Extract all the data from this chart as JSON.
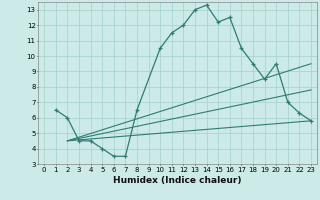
{
  "xlabel": "Humidex (Indice chaleur)",
  "bg_color": "#cceae8",
  "line_color": "#2e7d72",
  "grid_color": "#aad4d0",
  "xlim": [
    -0.5,
    23.5
  ],
  "ylim": [
    3,
    13.5
  ],
  "xticks": [
    0,
    1,
    2,
    3,
    4,
    5,
    6,
    7,
    8,
    9,
    10,
    11,
    12,
    13,
    14,
    15,
    16,
    17,
    18,
    19,
    20,
    21,
    22,
    23
  ],
  "yticks": [
    3,
    4,
    5,
    6,
    7,
    8,
    9,
    10,
    11,
    12,
    13
  ],
  "main_line": {
    "x": [
      1,
      2,
      3,
      4,
      5,
      6,
      7,
      8,
      10,
      11,
      12,
      13,
      14,
      15,
      16,
      17,
      18,
      19,
      20,
      21,
      22,
      23
    ],
    "y": [
      6.5,
      6.0,
      4.5,
      4.5,
      4.0,
      3.5,
      3.5,
      6.5,
      10.5,
      11.5,
      12.0,
      13.0,
      13.3,
      12.2,
      12.5,
      10.5,
      9.5,
      8.5,
      9.5,
      7.0,
      6.3,
      5.8
    ]
  },
  "straight_lines": [
    {
      "x": [
        2,
        23
      ],
      "y": [
        4.5,
        9.5
      ]
    },
    {
      "x": [
        2,
        23
      ],
      "y": [
        4.5,
        7.8
      ]
    },
    {
      "x": [
        2,
        23
      ],
      "y": [
        4.5,
        5.8
      ]
    }
  ]
}
